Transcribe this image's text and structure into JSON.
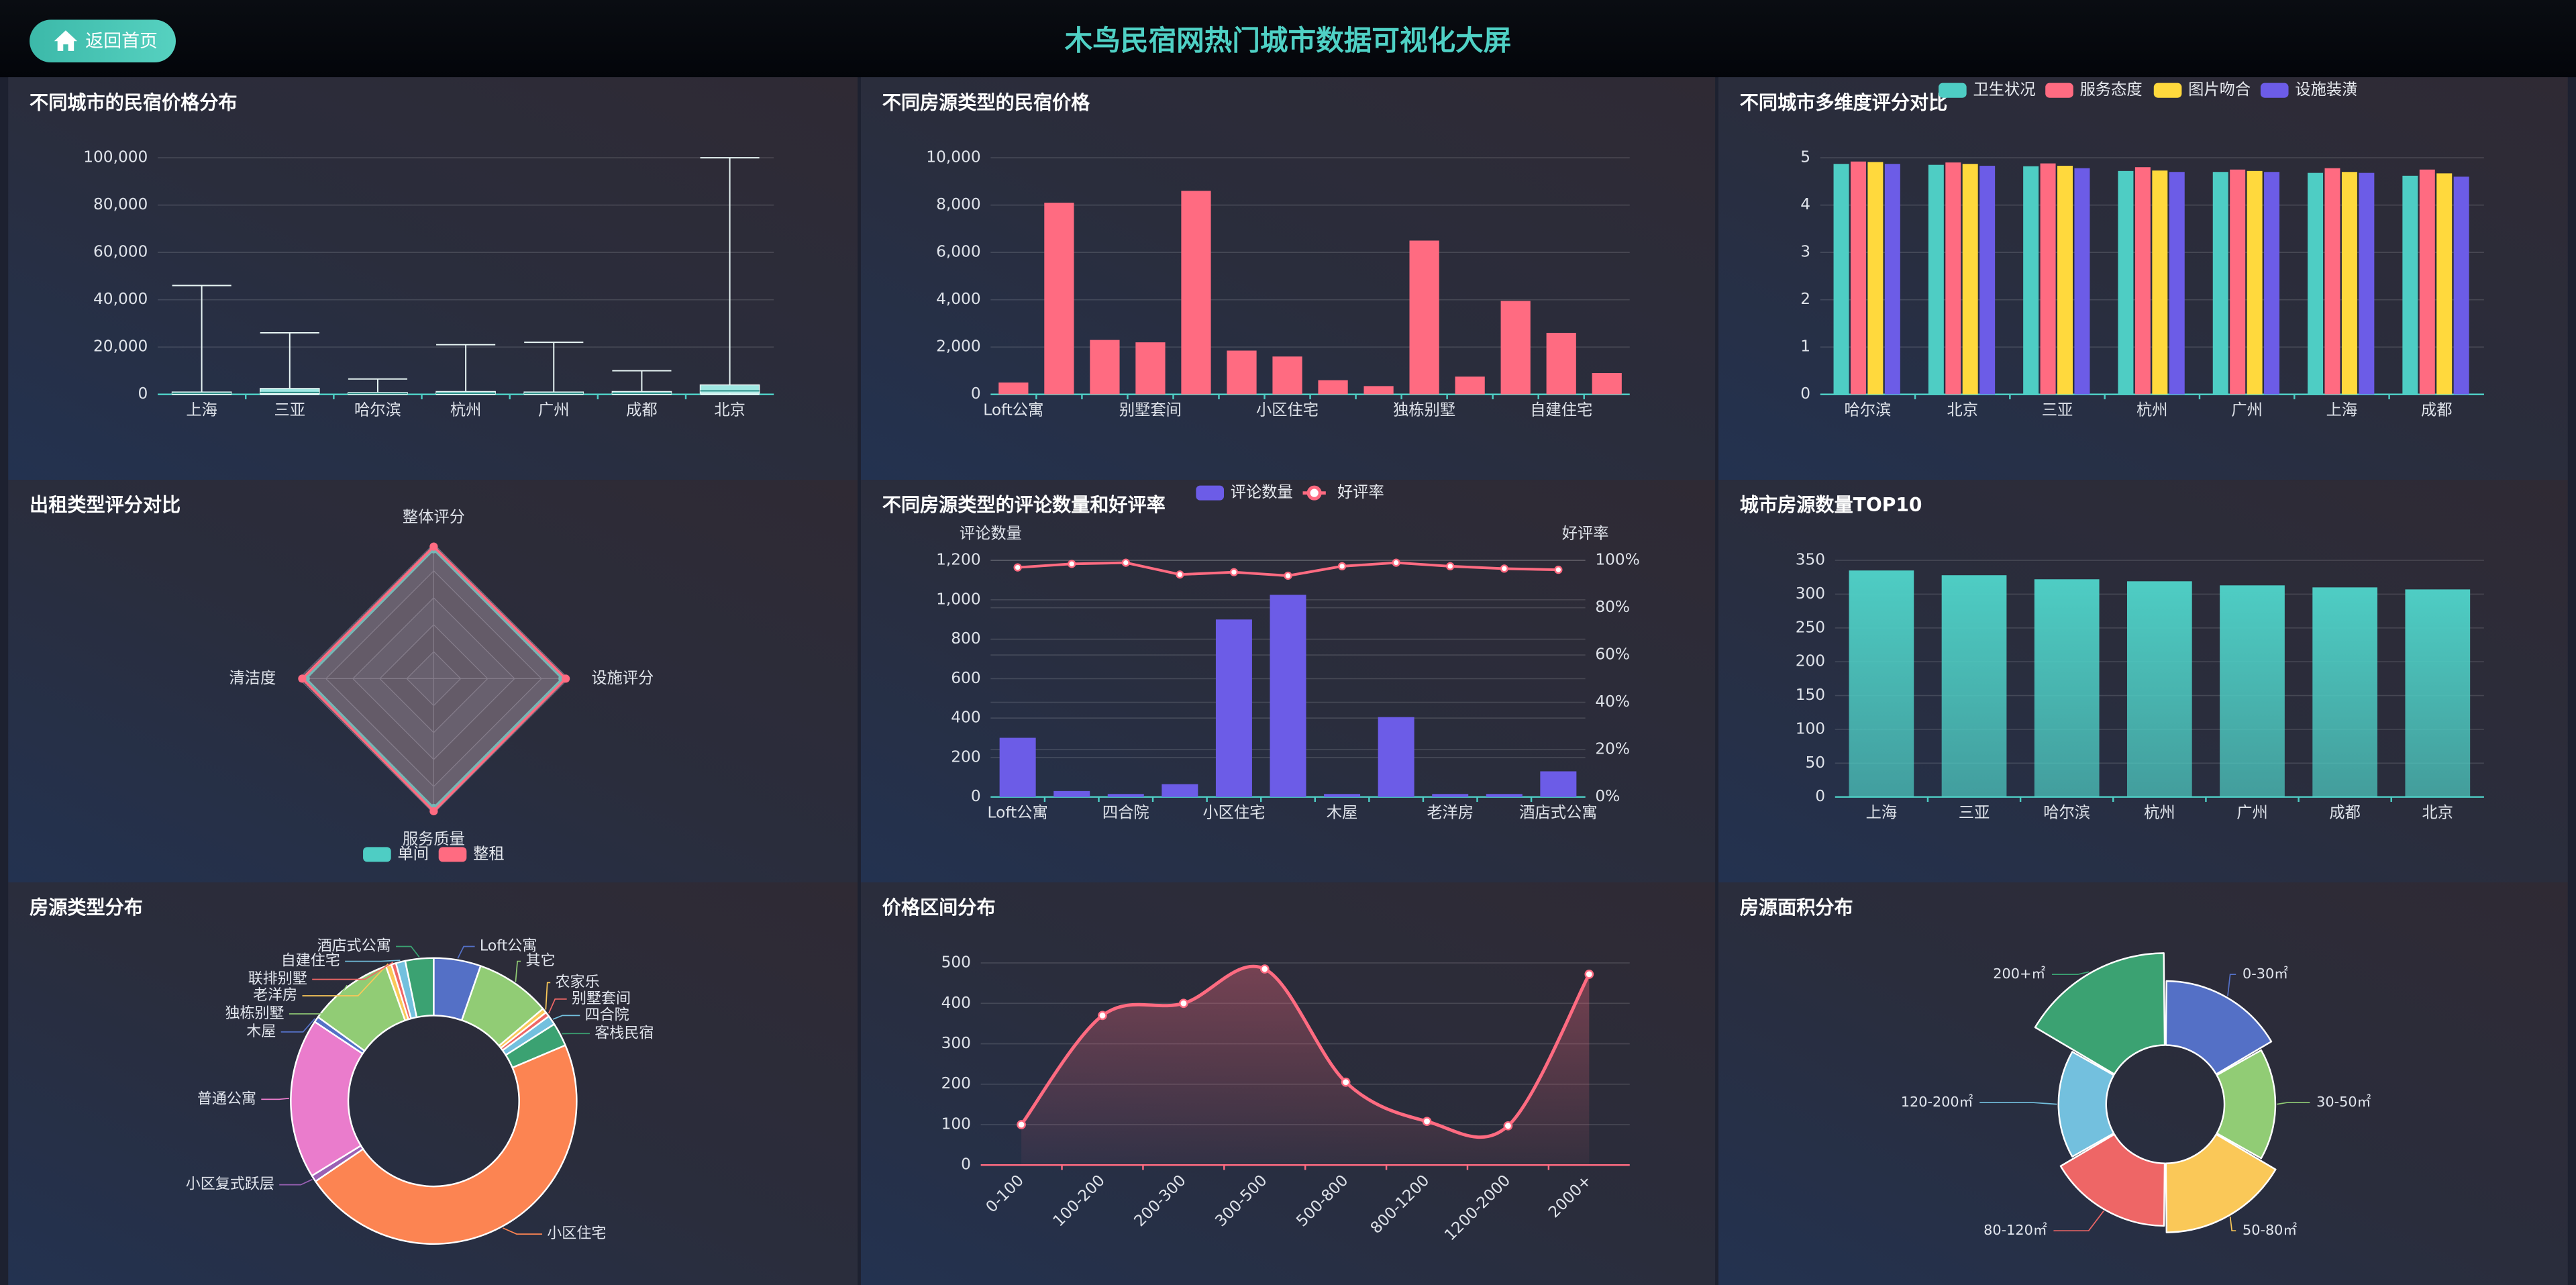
{
  "header": {
    "button": "返回首页",
    "title": "木鸟民宿网热门城市数据可视化大屏"
  },
  "chart_data": [
    {
      "type": "boxplot",
      "title": "不同城市的民宿价格分布",
      "categories": [
        "上海",
        "三亚",
        "哈尔滨",
        "杭州",
        "广州",
        "成都",
        "北京"
      ],
      "values": [
        [
          0,
          200,
          500,
          1000,
          46000
        ],
        [
          0,
          300,
          800,
          2500,
          26000
        ],
        [
          0,
          150,
          400,
          800,
          6500
        ],
        [
          0,
          200,
          500,
          1200,
          21000
        ],
        [
          0,
          200,
          450,
          1000,
          22000
        ],
        [
          0,
          200,
          500,
          1200,
          10000
        ],
        [
          0,
          500,
          1500,
          4000,
          100000
        ]
      ],
      "color": "#9fe7e2",
      "ylim": [
        0,
        100000
      ],
      "yticks": [
        0,
        {
          "value": 20000,
          "label": "20,000"
        },
        {
          "value": 40000,
          "label": "40,000"
        },
        {
          "value": 60000,
          "label": "60,000"
        },
        {
          "value": 80000,
          "label": "80,000"
        },
        {
          "value": 100000,
          "label": "100,000"
        }
      ],
      "grid": true
    },
    {
      "type": "bar",
      "title": "不同房源类型的民宿价格",
      "categories": [
        "Loft公寓",
        null,
        null,
        "别墅套间",
        null,
        null,
        "小区住宅",
        null,
        null,
        "独栋别墅",
        null,
        null,
        "自建住宅",
        null
      ],
      "values": [
        500,
        8100,
        2300,
        2200,
        8600,
        1850,
        1600,
        600,
        350,
        6500,
        750,
        3950,
        2600,
        900
      ],
      "color": "#ff6b81",
      "ylim": [
        0,
        10000
      ],
      "yticks": [
        0,
        {
          "value": 2000,
          "label": "2,000"
        },
        {
          "value": 4000,
          "label": "4,000"
        },
        {
          "value": 6000,
          "label": "6,000"
        },
        {
          "value": 8000,
          "label": "8,000"
        },
        {
          "value": 10000,
          "label": "10,000"
        }
      ],
      "grid": true
    },
    {
      "type": "bar",
      "title": "不同城市多维度评分对比",
      "categories": [
        "哈尔滨",
        "北京",
        "三亚",
        "杭州",
        "广州",
        "上海",
        "成都"
      ],
      "series": [
        {
          "name": "卫生状况",
          "color": "#4ecdc4",
          "values": [
            4.87,
            4.85,
            4.82,
            4.72,
            4.7,
            4.68,
            4.62
          ]
        },
        {
          "name": "服务态度",
          "color": "#ff6b81",
          "values": [
            4.92,
            4.9,
            4.88,
            4.8,
            4.75,
            4.78,
            4.75
          ]
        },
        {
          "name": "图片吻合",
          "color": "#ffd93d",
          "values": [
            4.91,
            4.87,
            4.83,
            4.73,
            4.72,
            4.7,
            4.67
          ]
        },
        {
          "name": "设施装潢",
          "color": "#6c5ce7",
          "values": [
            4.87,
            4.83,
            4.78,
            4.7,
            4.7,
            4.68,
            4.6
          ]
        }
      ],
      "ylim": [
        0,
        5
      ],
      "yticks": [
        0,
        1,
        2,
        3,
        4,
        5
      ],
      "grid": true,
      "legend": "top"
    },
    {
      "type": "radar",
      "title": "出租类型评分对比",
      "indicators": [
        "整体评分",
        "设施评分",
        "服务质量",
        "清洁度"
      ],
      "rlim": [
        0,
        5
      ],
      "series": [
        {
          "name": "单间",
          "color": "#4ecdc4",
          "values": [
            4.8,
            4.78,
            4.8,
            4.75
          ]
        },
        {
          "name": "整租",
          "color": "#ff6b81",
          "values": [
            4.9,
            4.9,
            4.92,
            4.88
          ]
        }
      ],
      "legend": "bottom"
    },
    {
      "type": "bar-line",
      "title": "不同房源类型的评论数量和好评率",
      "categories": [
        "Loft公寓",
        null,
        "四合院",
        null,
        "小区住宅",
        null,
        "木屋",
        null,
        "老洋房",
        null,
        "酒店式公寓"
      ],
      "ylabel": "评论数量",
      "y2label": "好评率",
      "series": [
        {
          "name": "评论数量",
          "color": "#6c5ce7",
          "values": [
            300,
            30,
            15,
            65,
            900,
            1025,
            15,
            405,
            15,
            15,
            130
          ]
        },
        {
          "name": "好评率",
          "color": "#ff6b81",
          "axis": "y2",
          "values": [
            97,
            98.5,
            99,
            94,
            95,
            93.5,
            97.5,
            99,
            97.5,
            96.5,
            96
          ]
        }
      ],
      "ylim": [
        0,
        1200
      ],
      "yticks": [
        0,
        200,
        400,
        600,
        800,
        {
          "value": 1000,
          "label": "1,000"
        },
        {
          "value": 1200,
          "label": "1,200"
        }
      ],
      "y2lim": [
        0,
        100
      ],
      "y2ticks": [
        {
          "value": 0,
          "label": "0%"
        },
        {
          "value": 20,
          "label": "20%"
        },
        {
          "value": 40,
          "label": "40%"
        },
        {
          "value": 60,
          "label": "60%"
        },
        {
          "value": 80,
          "label": "80%"
        },
        {
          "value": 100,
          "label": "100%"
        }
      ],
      "grid": true,
      "legend": "top"
    },
    {
      "type": "bar",
      "title": "城市房源数量TOP10",
      "categories": [
        "上海",
        "三亚",
        "哈尔滨",
        "杭州",
        "广州",
        "成都",
        "北京"
      ],
      "values": [
        335,
        328,
        322,
        319,
        313,
        310,
        307
      ],
      "color": "#4ecdc4",
      "gradient": true,
      "ylim": [
        0,
        350
      ],
      "yticks": [
        0,
        50,
        100,
        150,
        200,
        250,
        300,
        350
      ],
      "grid": true
    },
    {
      "type": "pie",
      "title": "房源类型分布",
      "donut": true,
      "categories": [
        "Loft公寓",
        "其它",
        "农家乐",
        "别墅套间",
        "四合院",
        "客栈民宿",
        "小区住宅",
        "小区复式跃层",
        "普通公寓",
        "木屋",
        "独栋别墅",
        "老洋房",
        "联排别墅",
        "自建住宅",
        "酒店式公寓"
      ],
      "values": [
        5,
        8,
        0.5,
        0.5,
        1,
        2.5,
        44,
        0.7,
        17,
        0.6,
        9,
        0.6,
        0.5,
        1,
        3
      ],
      "colors": [
        "#5470c6",
        "#91cc75",
        "#fac858",
        "#ee6666",
        "#73c0de",
        "#3ba272",
        "#fc8452",
        "#9a60b4",
        "#ea7ccc",
        "#5470c6",
        "#91cc75",
        "#fac858",
        "#ee6666",
        "#73c0de",
        "#3ba272"
      ]
    },
    {
      "type": "line",
      "title": "价格区间分布",
      "categories": [
        "0-100",
        "100-200",
        "200-300",
        "300-500",
        "500-800",
        "800-1200",
        "1200-2000",
        "2000+"
      ],
      "values": [
        100,
        370,
        400,
        485,
        205,
        108,
        97,
        472
      ],
      "color": "#ff6b81",
      "smooth": true,
      "area": true,
      "ylim": [
        0,
        500
      ],
      "yticks": [
        0,
        100,
        200,
        300,
        400,
        500
      ],
      "grid": true
    },
    {
      "type": "pie",
      "title": "房源面积分布",
      "rose": true,
      "categories": [
        "0-30㎡",
        "30-50㎡",
        "50-80㎡",
        "80-120㎡",
        "120-200㎡",
        "200+㎡"
      ],
      "values": [
        75,
        67,
        78,
        74,
        65,
        92
      ],
      "colors": [
        "#5470c6",
        "#91cc75",
        "#fac858",
        "#ee6666",
        "#73c0de",
        "#3ba272"
      ]
    }
  ]
}
